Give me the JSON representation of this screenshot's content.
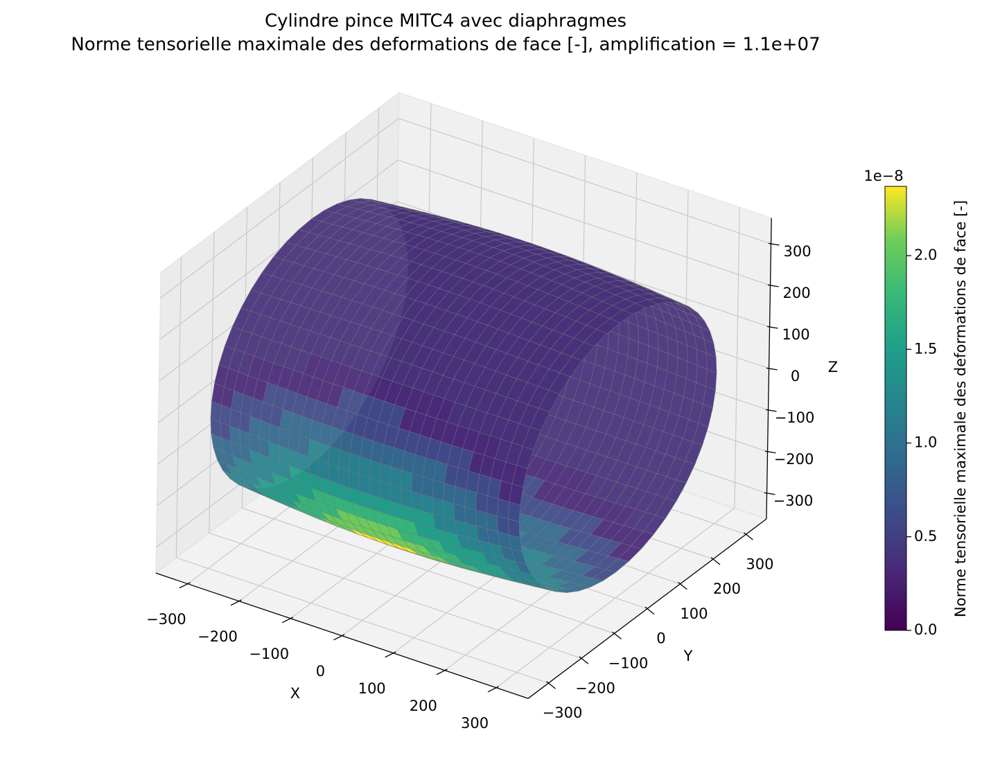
{
  "chart_data": {
    "type": "surface3d",
    "title": "Cylindre pince MITC4 avec diaphragmes",
    "subtitle": "Norme tensorielle maximale des deformations de face [-], amplification = 1.1e+07",
    "xlabel": "X",
    "ylabel": "Y",
    "zlabel": "Z",
    "xlim": [
      -362,
      362
    ],
    "ylim": [
      -362,
      362
    ],
    "zlim": [
      -362,
      362
    ],
    "xticks": [
      {
        "value": -300,
        "label": "−300"
      },
      {
        "value": -200,
        "label": "−200"
      },
      {
        "value": -100,
        "label": "−100"
      },
      0,
      100,
      200,
      300
    ],
    "yticks": [
      {
        "value": -300,
        "label": "−300"
      },
      {
        "value": -200,
        "label": "−200"
      },
      {
        "value": -100,
        "label": "−100"
      },
      0,
      100,
      200,
      300
    ],
    "zticks": [
      {
        "value": -300,
        "label": "−300"
      },
      {
        "value": -200,
        "label": "−200"
      },
      {
        "value": -100,
        "label": "−100"
      },
      0,
      100,
      200,
      300
    ],
    "grid": true,
    "colorbar": {
      "label": "Norme tensorielle maximale des deformations de face [-]",
      "offset_text": "1e−8",
      "colormap": "viridis",
      "clim": [
        0,
        2.37
      ],
      "ticks": [
        {
          "value": 0,
          "label": "0.0"
        },
        0.5,
        {
          "value": 1,
          "label": "1.0"
        },
        1.5,
        {
          "value": 2,
          "label": "2.0"
        }
      ]
    }
  }
}
